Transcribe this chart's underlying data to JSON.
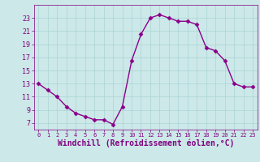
{
  "x": [
    0,
    1,
    2,
    3,
    4,
    5,
    6,
    7,
    8,
    9,
    10,
    11,
    12,
    13,
    14,
    15,
    16,
    17,
    18,
    19,
    20,
    21,
    22,
    23
  ],
  "y": [
    13,
    12,
    11,
    9.5,
    8.5,
    8,
    7.5,
    7.5,
    6.8,
    9.5,
    16.5,
    20.5,
    23,
    23.5,
    23,
    22.5,
    22.5,
    22,
    18.5,
    18,
    16.5,
    13,
    12.5,
    12.5
  ],
  "line_color": "#8b008b",
  "marker": "D",
  "marker_size": 2.5,
  "bg_color": "#cce8e8",
  "xlabel": "Windchill (Refroidissement éolien,°C)",
  "xlabel_fontsize": 7,
  "tick_label_fontsize": 6,
  "tick_color": "#800080",
  "label_color": "#800080",
  "ylim": [
    6,
    25
  ],
  "xlim": [
    -0.5,
    23.5
  ],
  "yticks": [
    7,
    9,
    11,
    13,
    15,
    17,
    19,
    21,
    23
  ],
  "xticks": [
    0,
    1,
    2,
    3,
    4,
    5,
    6,
    7,
    8,
    9,
    10,
    11,
    12,
    13,
    14,
    15,
    16,
    17,
    18,
    19,
    20,
    21,
    22,
    23
  ],
  "grid_color": "#aad4d4",
  "line_width": 1.0
}
